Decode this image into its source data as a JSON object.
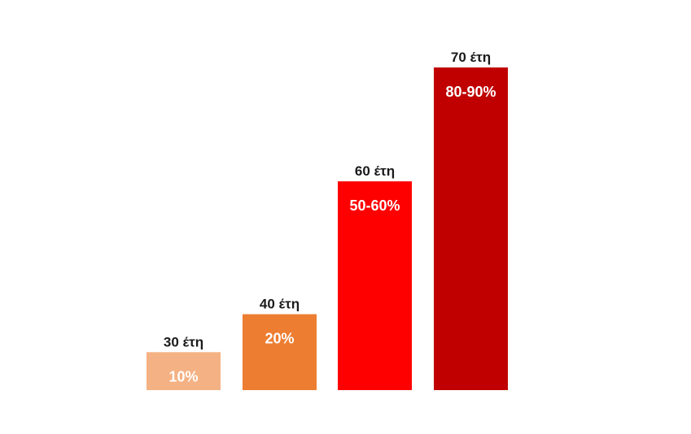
{
  "chart_data": {
    "type": "bar",
    "categories": [
      "30 έτη",
      "40 έτη",
      "60 έτη",
      "70 έτη"
    ],
    "values": [
      10,
      20,
      55,
      85
    ],
    "value_labels": [
      "10%",
      "20%",
      "50-60%",
      "80-90%"
    ],
    "colors": [
      "#f4b183",
      "#ed7d31",
      "#ff0000",
      "#c00000"
    ],
    "ylim": [
      0,
      85
    ],
    "grid": false,
    "legend": "none"
  }
}
